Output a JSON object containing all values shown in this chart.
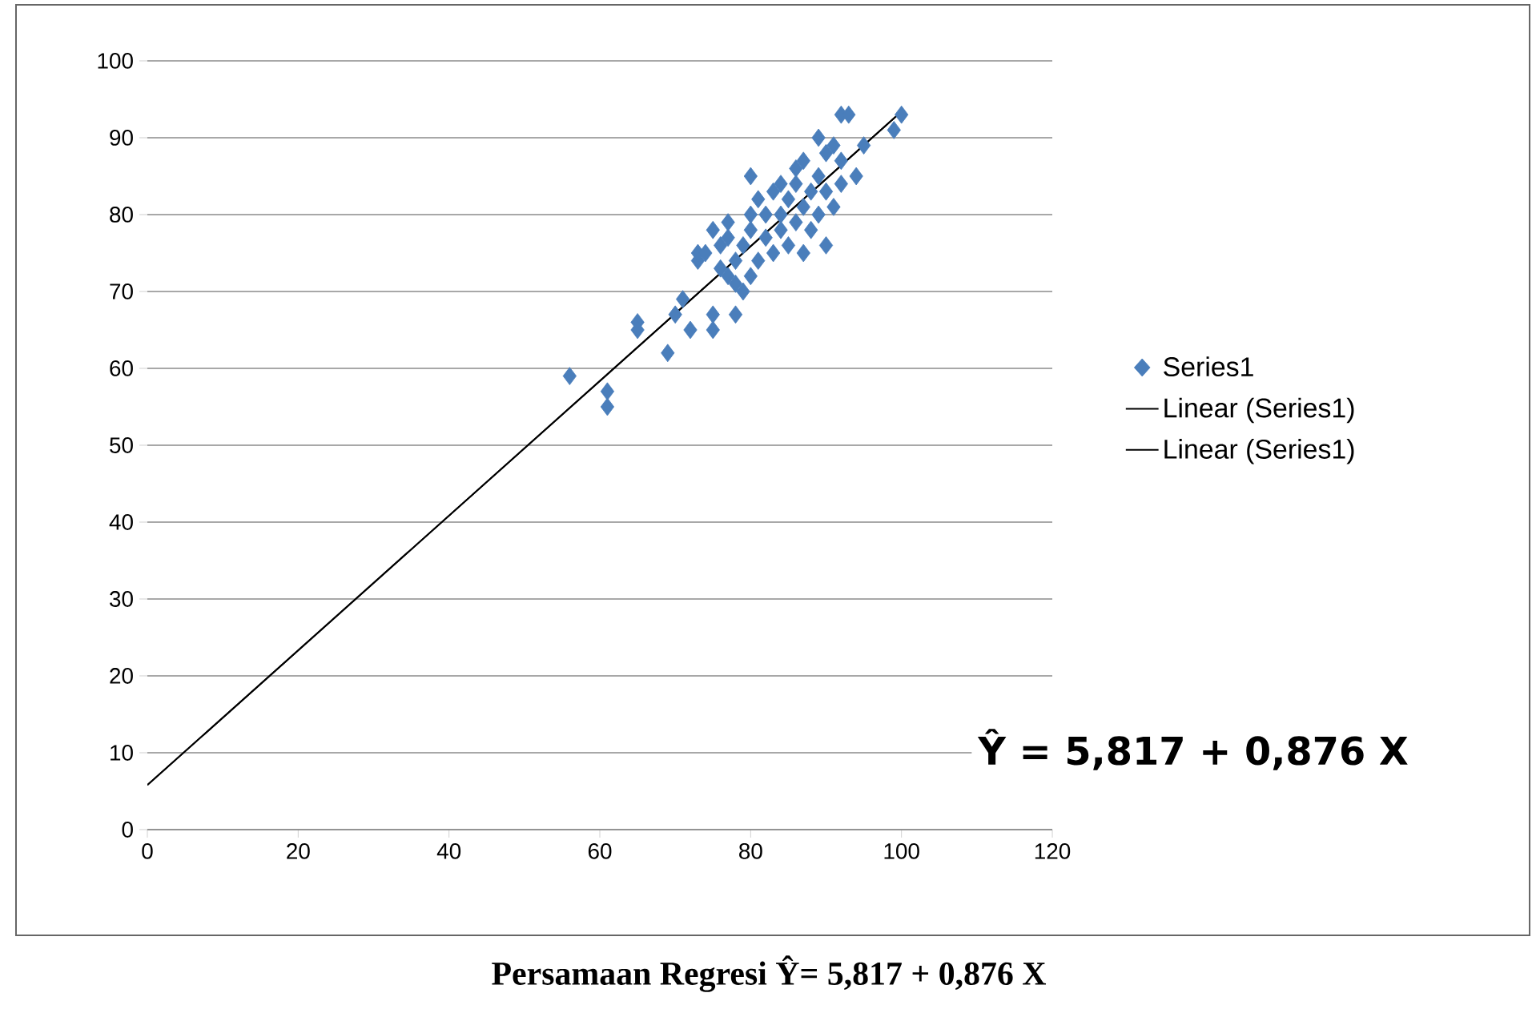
{
  "chart_data": {
    "type": "scatter",
    "annotations": [
      "Ŷ  =  5,817 + 0,876 X",
      "Persamaan Regresi Ŷ= 5,817 + 0,876 X"
    ],
    "xlim": [
      0,
      120
    ],
    "xticks": [
      0,
      20,
      40,
      60,
      80,
      100,
      120
    ],
    "ylim": [
      0,
      100
    ],
    "yticks": [
      0,
      10,
      20,
      30,
      40,
      50,
      60,
      70,
      80,
      90,
      100
    ],
    "grid": "y",
    "legend": "right",
    "series": [
      {
        "name": "Series1",
        "marker": "diamond",
        "color": "#4a7ebb",
        "x": [
          56,
          61,
          61,
          65,
          65,
          69,
          70,
          71,
          72,
          73,
          73,
          74,
          75,
          75,
          75,
          76,
          76,
          77,
          77,
          78,
          78,
          79,
          79,
          80,
          80,
          80,
          80,
          81,
          81,
          82,
          82,
          83,
          83,
          84,
          84,
          85,
          85,
          86,
          86,
          86,
          87,
          87,
          87,
          88,
          88,
          89,
          89,
          89,
          90,
          90,
          90,
          91,
          91,
          92,
          92,
          92,
          93,
          94,
          95,
          100,
          99,
          78,
          77,
          84
        ],
        "values": [
          59,
          57,
          55,
          66,
          65,
          62,
          67,
          69,
          65,
          74,
          75,
          75,
          78,
          65,
          67,
          73,
          76,
          79,
          72,
          67,
          74,
          70,
          76,
          85,
          72,
          78,
          80,
          74,
          82,
          77,
          80,
          75,
          83,
          78,
          80,
          82,
          76,
          86,
          79,
          84,
          75,
          87,
          81,
          78,
          83,
          90,
          80,
          85,
          76,
          88,
          83,
          89,
          81,
          93,
          84,
          87,
          93,
          85,
          89,
          93,
          91,
          71,
          77,
          84
        ]
      },
      {
        "name": "Linear (Series1)",
        "type": "line",
        "color": "#000000",
        "x": [
          0,
          100
        ],
        "values": [
          5.8,
          93.4
        ]
      },
      {
        "name": "Linear (Series1)",
        "type": "line",
        "color": "#000000",
        "x": [
          0,
          100
        ],
        "values": [
          5.8,
          93.4
        ]
      }
    ]
  }
}
